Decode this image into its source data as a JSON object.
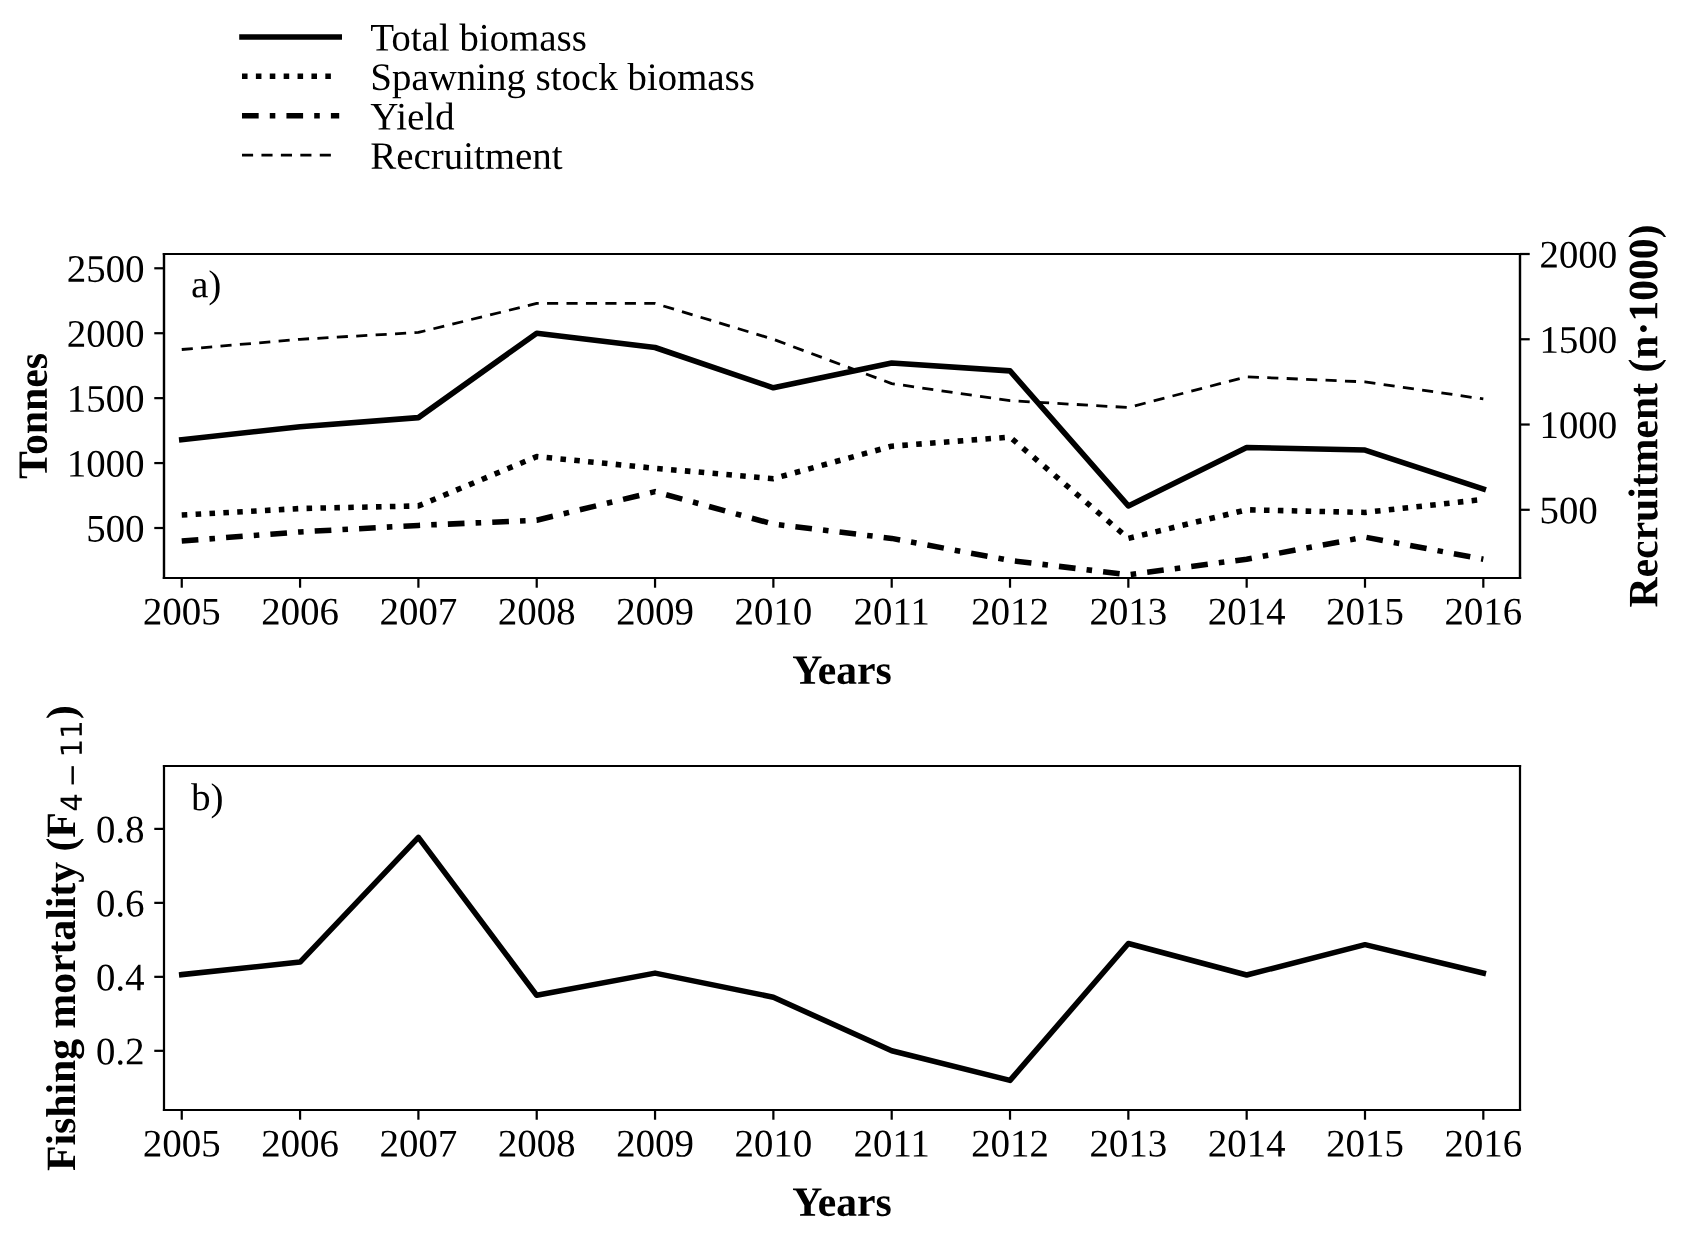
{
  "chart_data": [
    {
      "type": "line",
      "xlabel": "Years",
      "ylabel": "Tonnes",
      "y2label": "Recruitment (n·1000)",
      "annotations": [
        "a)"
      ],
      "x": [
        2005,
        2006,
        2007,
        2008,
        2009,
        2010,
        2011,
        2012,
        2013,
        2014,
        2015,
        2016
      ],
      "xlim": [
        2004.85,
        2016.31
      ],
      "xticks": [
        2005,
        2006,
        2007,
        2008,
        2009,
        2010,
        2011,
        2012,
        2013,
        2014,
        2015,
        2016
      ],
      "ylim": [
        115,
        2610
      ],
      "yticks": [
        500,
        1000,
        1500,
        2000,
        2500
      ],
      "y2lim": [
        100,
        2000
      ],
      "y2ticks": [
        500,
        1000,
        1500,
        2000
      ],
      "legend": "top left",
      "grid": false,
      "marker": "none",
      "series": [
        {
          "name": "Total biomass",
          "color": "#000000",
          "line_style": "solid",
          "values": [
            1180,
            1280,
            1350,
            2000,
            1890,
            1580,
            1770,
            1710,
            670,
            1120,
            1100,
            800
          ]
        },
        {
          "name": "Spawning stock biomass",
          "color": "#000000",
          "line_style": "dotted",
          "values": [
            600,
            650,
            670,
            1050,
            960,
            880,
            1130,
            1200,
            420,
            640,
            620,
            720
          ]
        },
        {
          "name": "Yield",
          "color": "#000000",
          "line_style": "dashdot",
          "values": [
            400,
            470,
            520,
            560,
            780,
            530,
            420,
            250,
            140,
            260,
            430,
            260
          ]
        },
        {
          "name": "Recruitment",
          "color": "#000000",
          "line_style": "dashed",
          "axis": "y2",
          "values": [
            1440,
            1500,
            1540,
            1710,
            1710,
            1500,
            1240,
            1140,
            1100,
            1280,
            1250,
            1150
          ]
        }
      ]
    },
    {
      "type": "line",
      "xlabel": "Years",
      "ylabel": "Fishing mortality (F$_{4−11}$)",
      "annotations": [
        "b)"
      ],
      "x": [
        2005,
        2006,
        2007,
        2008,
        2009,
        2010,
        2011,
        2012,
        2013,
        2014,
        2015,
        2016
      ],
      "xlim": [
        2004.85,
        2016.31
      ],
      "xticks": [
        2005,
        2006,
        2007,
        2008,
        2009,
        2010,
        2011,
        2012,
        2013,
        2014,
        2015,
        2016
      ],
      "ylim": [
        0.04,
        0.97
      ],
      "yticks": [
        0.2,
        0.4,
        0.6,
        0.8
      ],
      "grid": false,
      "marker": "none",
      "series": [
        {
          "color": "#000000",
          "line_style": "solid",
          "values": [
            0.406,
            0.44,
            0.777,
            0.35,
            0.41,
            0.345,
            0.2,
            0.12,
            0.49,
            0.405,
            0.487,
            0.41
          ]
        }
      ]
    }
  ]
}
